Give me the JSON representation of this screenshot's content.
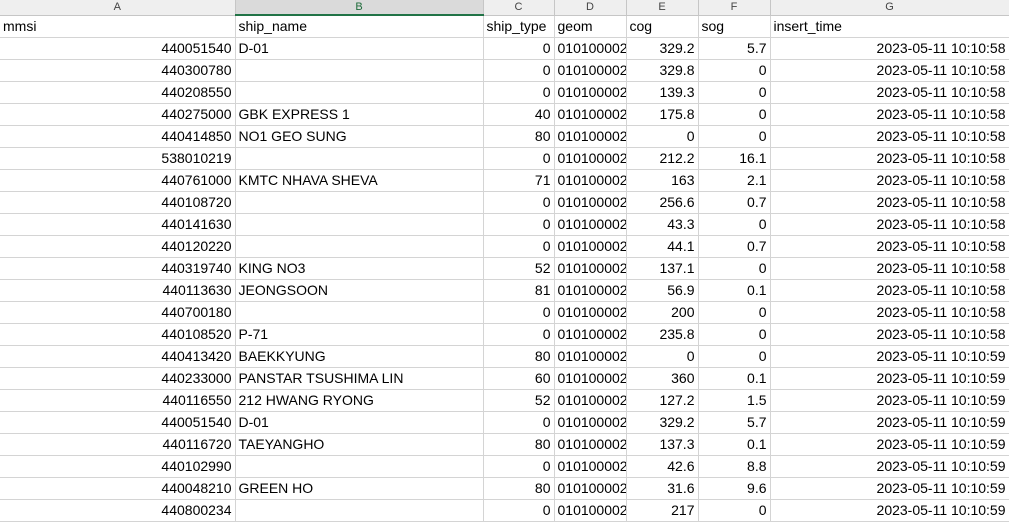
{
  "column_letters": [
    "A",
    "B",
    "C",
    "D",
    "E",
    "F",
    "G"
  ],
  "selected_column": "B",
  "header_row": [
    "mmsi",
    "ship_name",
    "ship_type",
    "geom",
    "cog",
    "sog",
    "insert_time"
  ],
  "rows": [
    [
      "440051540",
      "D-01",
      "0",
      "010100002",
      "329.2",
      "5.7",
      "2023-05-11 10:10:58"
    ],
    [
      "440300780",
      "",
      "0",
      "010100002",
      "329.8",
      "0",
      "2023-05-11 10:10:58"
    ],
    [
      "440208550",
      "",
      "0",
      "010100002",
      "139.3",
      "0",
      "2023-05-11 10:10:58"
    ],
    [
      "440275000",
      "GBK EXPRESS 1",
      "40",
      "010100002",
      "175.8",
      "0",
      "2023-05-11 10:10:58"
    ],
    [
      "440414850",
      "NO1 GEO SUNG",
      "80",
      "010100002",
      "0",
      "0",
      "2023-05-11 10:10:58"
    ],
    [
      "538010219",
      "",
      "0",
      "010100002",
      "212.2",
      "16.1",
      "2023-05-11 10:10:58"
    ],
    [
      "440761000",
      "KMTC NHAVA SHEVA",
      "71",
      "010100002",
      "163",
      "2.1",
      "2023-05-11 10:10:58"
    ],
    [
      "440108720",
      "",
      "0",
      "010100002",
      "256.6",
      "0.7",
      "2023-05-11 10:10:58"
    ],
    [
      "440141630",
      "",
      "0",
      "010100002",
      "43.3",
      "0",
      "2023-05-11 10:10:58"
    ],
    [
      "440120220",
      "",
      "0",
      "010100002",
      "44.1",
      "0.7",
      "2023-05-11 10:10:58"
    ],
    [
      "440319740",
      "KING NO3",
      "52",
      "010100002",
      "137.1",
      "0",
      "2023-05-11 10:10:58"
    ],
    [
      "440113630",
      "JEONGSOON",
      "81",
      "010100002",
      "56.9",
      "0.1",
      "2023-05-11 10:10:58"
    ],
    [
      "440700180",
      "",
      "0",
      "010100002",
      "200",
      "0",
      "2023-05-11 10:10:58"
    ],
    [
      "440108520",
      "P-71",
      "0",
      "010100002",
      "235.8",
      "0",
      "2023-05-11 10:10:58"
    ],
    [
      "440413420",
      "BAEKKYUNG",
      "80",
      "010100002",
      "0",
      "0",
      "2023-05-11 10:10:59"
    ],
    [
      "440233000",
      "PANSTAR TSUSHIMA LIN",
      "60",
      "010100002",
      "360",
      "0.1",
      "2023-05-11 10:10:59"
    ],
    [
      "440116550",
      "212 HWANG RYONG",
      "52",
      "010100002",
      "127.2",
      "1.5",
      "2023-05-11 10:10:59"
    ],
    [
      "440051540",
      "D-01",
      "0",
      "010100002",
      "329.2",
      "5.7",
      "2023-05-11 10:10:59"
    ],
    [
      "440116720",
      "TAEYANGHO",
      "80",
      "010100002",
      "137.3",
      "0.1",
      "2023-05-11 10:10:59"
    ],
    [
      "440102990",
      "",
      "0",
      "010100002",
      "42.6",
      "8.8",
      "2023-05-11 10:10:59"
    ],
    [
      "440048210",
      "GREEN HO",
      "80",
      "010100002",
      "31.6",
      "9.6",
      "2023-05-11 10:10:59"
    ],
    [
      "440800234",
      "",
      "0",
      "010100002",
      "217",
      "0",
      "2023-05-11 10:10:59"
    ]
  ]
}
